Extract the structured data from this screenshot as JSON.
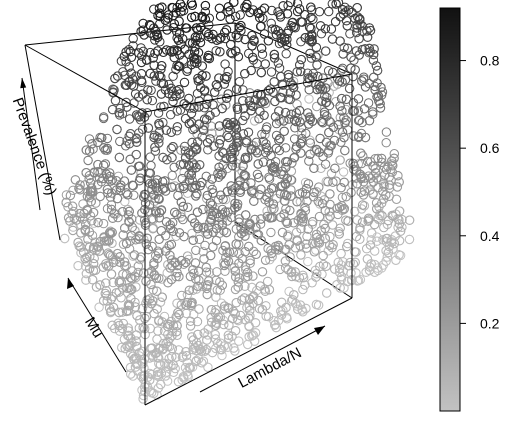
{
  "chart_data": {
    "type": "scatter",
    "subtype": "3d-scatter",
    "x_axis": {
      "label": "Lambda/N"
    },
    "y_axis": {
      "label": "Mu"
    },
    "z_axis": {
      "label": "Prevalence (%)"
    },
    "colorbar": {
      "range": [
        0.0,
        0.92
      ],
      "ticks": [
        0.2,
        0.4,
        0.6,
        0.8
      ],
      "tick_labels": [
        "0.2",
        "0.4",
        "0.6",
        "0.8"
      ],
      "color_low": "#c2c2c2",
      "color_high": "#111111"
    },
    "marker": "open-circle",
    "point_count_estimate": 4000,
    "value_distribution": "prevalence rises with Lambda/N toward ~0.9 and falls toward 0 as Mu increases; low-prevalence points cluster near the floor at high Mu"
  }
}
